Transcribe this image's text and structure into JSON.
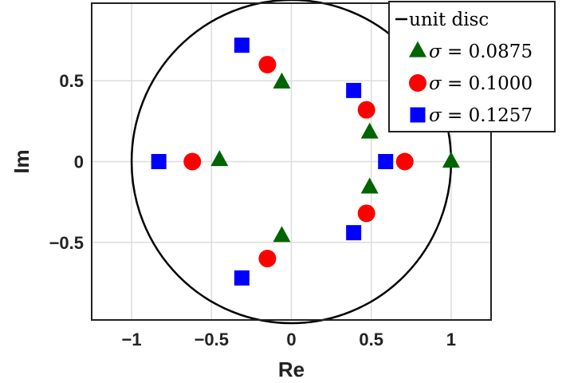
{
  "chart_data": {
    "type": "scatter",
    "title": "",
    "xlabel": "Re",
    "ylabel": "Im",
    "xlim": [
      -1.25,
      1.25
    ],
    "ylim": [
      -0.98,
      0.98
    ],
    "xticks": [
      -1,
      -0.5,
      0,
      0.5,
      1
    ],
    "xtick_labels": [
      "−1",
      "−0.5",
      "0",
      "0.5",
      "1"
    ],
    "yticks": [
      -0.5,
      0,
      0.5
    ],
    "ytick_labels": [
      "−0.5",
      "0",
      "0.5"
    ],
    "grid": true,
    "legend_position": "top-right",
    "unit_circle": {
      "name": "unit disc",
      "center": [
        0.0,
        0.0
      ],
      "radius": 1.0,
      "color": "#000000"
    },
    "series": [
      {
        "name": "σ = 0.0875",
        "symbol": "σ",
        "value_text": " = 0.0875",
        "marker": "triangle",
        "color": "#006400",
        "points": [
          [
            1.0,
            0.0
          ],
          [
            0.49,
            0.18
          ],
          [
            0.49,
            -0.16
          ],
          [
            -0.06,
            0.49
          ],
          [
            -0.06,
            -0.46
          ],
          [
            -0.45,
            0.01
          ]
        ]
      },
      {
        "name": "σ = 0.1000",
        "symbol": "σ",
        "value_text": " = 0.1000",
        "marker": "circle",
        "color": "#ff0000",
        "points": [
          [
            0.71,
            0.0
          ],
          [
            0.47,
            0.32
          ],
          [
            0.47,
            -0.32
          ],
          [
            -0.15,
            0.6
          ],
          [
            -0.15,
            -0.6
          ],
          [
            -0.62,
            0.0
          ]
        ]
      },
      {
        "name": "σ = 0.1257",
        "symbol": "σ",
        "value_text": " = 0.1257",
        "marker": "square",
        "color": "#0000ff",
        "points": [
          [
            0.59,
            0.0
          ],
          [
            0.39,
            0.44
          ],
          [
            0.39,
            -0.44
          ],
          [
            -0.31,
            0.72
          ],
          [
            -0.31,
            -0.72
          ],
          [
            -0.83,
            0.0
          ]
        ]
      }
    ]
  }
}
